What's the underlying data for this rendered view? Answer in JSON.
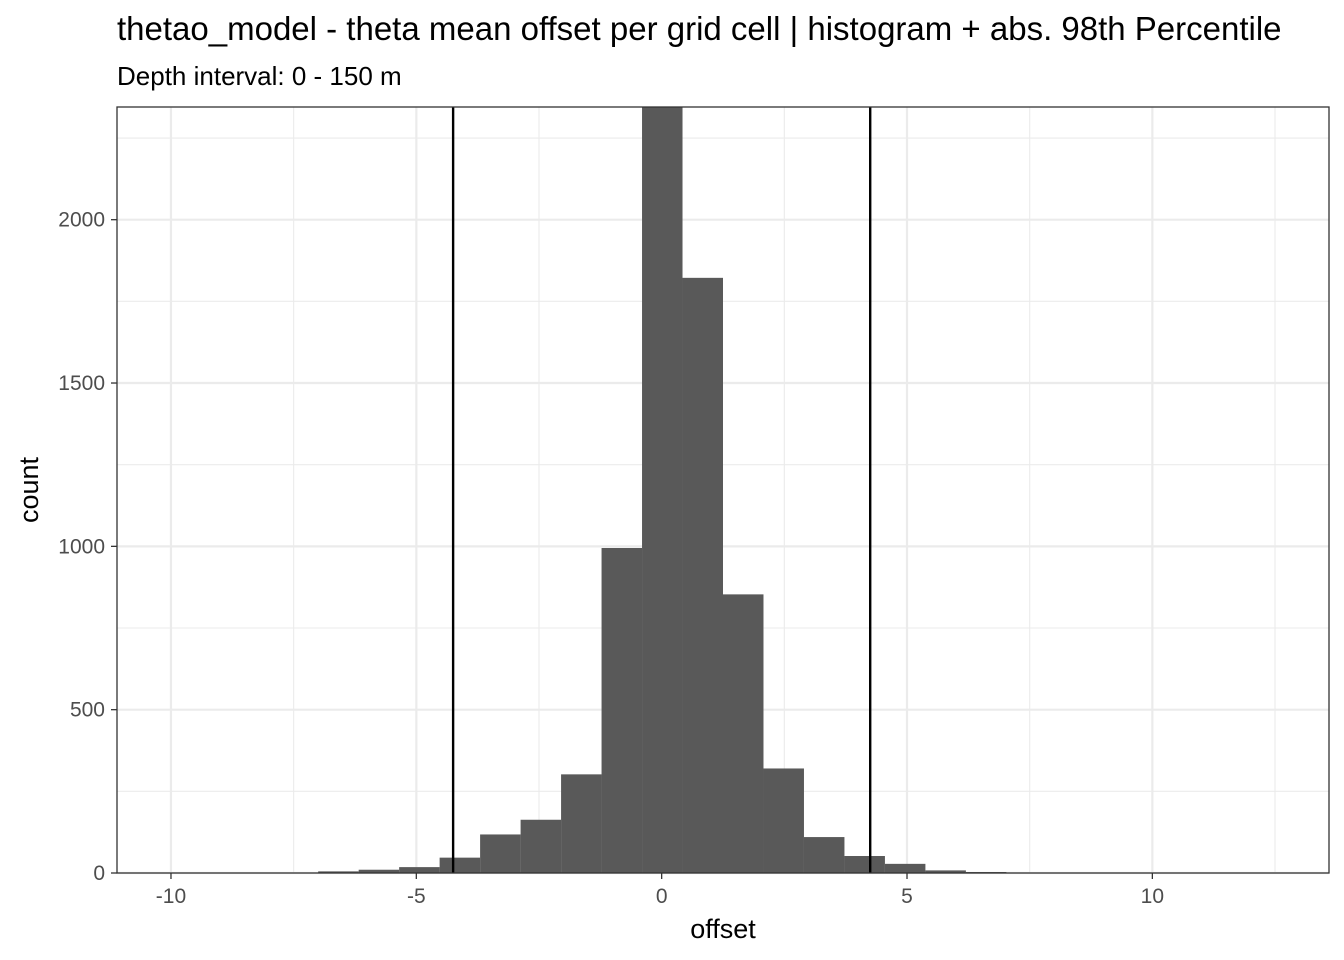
{
  "chart_data": {
    "type": "bar",
    "title": "thetao_model  -  theta mean offset per grid cell | histogram + abs. 98th Percentile",
    "subtitle": "Depth interval: 0 - 150 m",
    "xlabel": "offset",
    "ylabel": "count",
    "xlim": [
      -11.1,
      13.6
    ],
    "ylim": [
      0,
      2345
    ],
    "x_ticks": [
      -10,
      -5,
      0,
      5,
      10
    ],
    "x_tick_labels": [
      "-10",
      "-5",
      "0",
      "5",
      "10"
    ],
    "y_ticks": [
      0,
      500,
      1000,
      1500,
      2000
    ],
    "y_tick_labels": [
      "0",
      "500",
      "1000",
      "1500",
      "2000"
    ],
    "grid": true,
    "bin_width": 0.825,
    "bins": [
      {
        "x_min": -7.0,
        "x_max": -6.175,
        "count": 5
      },
      {
        "x_min": -6.175,
        "x_max": -5.35,
        "count": 10
      },
      {
        "x_min": -5.35,
        "x_max": -4.525,
        "count": 18
      },
      {
        "x_min": -4.525,
        "x_max": -3.7,
        "count": 47
      },
      {
        "x_min": -3.7,
        "x_max": -2.875,
        "count": 118
      },
      {
        "x_min": -2.875,
        "x_max": -2.05,
        "count": 163
      },
      {
        "x_min": -2.05,
        "x_max": -1.225,
        "count": 302
      },
      {
        "x_min": -1.225,
        "x_max": -0.4,
        "count": 995
      },
      {
        "x_min": -0.4,
        "x_max": 0.425,
        "count": 2345
      },
      {
        "x_min": 0.425,
        "x_max": 1.25,
        "count": 1822
      },
      {
        "x_min": 1.25,
        "x_max": 2.075,
        "count": 853
      },
      {
        "x_min": 2.075,
        "x_max": 2.9,
        "count": 320
      },
      {
        "x_min": 2.9,
        "x_max": 3.725,
        "count": 110
      },
      {
        "x_min": 3.725,
        "x_max": 4.55,
        "count": 52
      },
      {
        "x_min": 4.55,
        "x_max": 5.375,
        "count": 28
      },
      {
        "x_min": 5.375,
        "x_max": 6.2,
        "count": 8
      },
      {
        "x_min": 6.2,
        "x_max": 7.025,
        "count": 3
      }
    ],
    "reference_lines": [
      -4.25,
      4.25
    ],
    "colors": {
      "bar": "#595959",
      "line": "#000000",
      "grid": "#ebebeb",
      "panel_border": "#333333"
    }
  }
}
